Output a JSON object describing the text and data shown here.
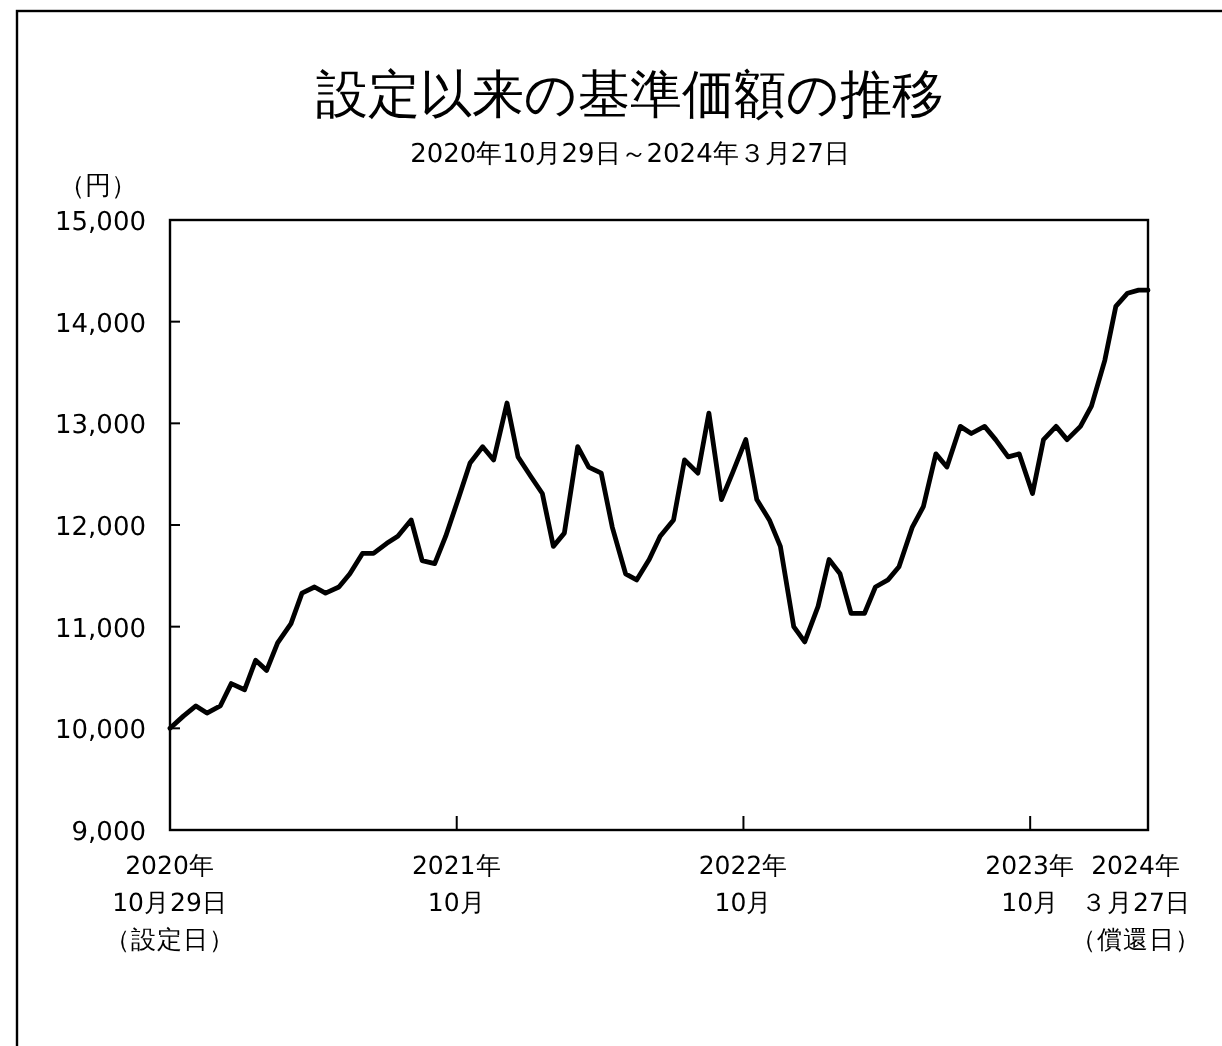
{
  "chart_data": {
    "type": "line",
    "title": "設定以来の基準価額の推移",
    "subtitle": "2020年10月29日～2024年３月27日",
    "ylabel": "（円）",
    "xlim": [
      "2020-10-29",
      "2024-03-27"
    ],
    "ylim": [
      9000,
      15000
    ],
    "xticks": [
      {
        "value": "2020-10-29",
        "label": "2020年10月29日（設定日）"
      },
      {
        "value": "2021-10-29",
        "label": "2021年10月"
      },
      {
        "value": "2022-10-29",
        "label": "2022年10月"
      },
      {
        "value": "2023-10-29",
        "label": "2023年10月"
      },
      {
        "value": "2024-03-27",
        "label": "2024年３月27日（償還日）"
      }
    ],
    "yticks": [
      {
        "value": 9000,
        "label": "9,000"
      },
      {
        "value": 10000,
        "label": "10,000"
      },
      {
        "value": 11000,
        "label": "11,000"
      },
      {
        "value": 12000,
        "label": "12,000"
      },
      {
        "value": 13000,
        "label": "13,000"
      },
      {
        "value": 14000,
        "label": "14,000"
      },
      {
        "value": 15000,
        "label": "15,000"
      }
    ],
    "grid": false,
    "color": "#000000",
    "x": [
      "2020-10-29",
      "2020-11-15",
      "2020-12-01",
      "2020-12-15",
      "2021-01-01",
      "2021-01-15",
      "2021-02-01",
      "2021-02-15",
      "2021-03-01",
      "2021-03-15",
      "2021-04-01",
      "2021-04-15",
      "2021-05-01",
      "2021-05-15",
      "2021-06-01",
      "2021-06-15",
      "2021-07-01",
      "2021-07-15",
      "2021-08-01",
      "2021-08-15",
      "2021-09-01",
      "2021-09-15",
      "2021-10-01",
      "2021-10-15",
      "2021-11-01",
      "2021-11-15",
      "2021-12-01",
      "2021-12-15",
      "2022-01-01",
      "2022-01-15",
      "2022-02-01",
      "2022-02-15",
      "2022-03-01",
      "2022-03-15",
      "2022-04-01",
      "2022-04-15",
      "2022-05-01",
      "2022-05-15",
      "2022-06-01",
      "2022-06-15",
      "2022-07-01",
      "2022-07-15",
      "2022-08-01",
      "2022-08-15",
      "2022-09-01",
      "2022-09-15",
      "2022-10-01",
      "2022-10-15",
      "2022-11-01",
      "2022-11-15",
      "2022-12-01",
      "2022-12-15",
      "2023-01-01",
      "2023-01-15",
      "2023-02-01",
      "2023-02-15",
      "2023-03-01",
      "2023-03-15",
      "2023-04-01",
      "2023-04-15",
      "2023-05-01",
      "2023-05-15",
      "2023-06-01",
      "2023-06-15",
      "2023-07-01",
      "2023-07-15",
      "2023-08-01",
      "2023-08-15",
      "2023-09-01",
      "2023-09-15",
      "2023-10-01",
      "2023-10-15",
      "2023-11-01",
      "2023-11-15",
      "2023-12-01",
      "2023-12-15",
      "2024-01-01",
      "2024-01-15",
      "2024-02-01",
      "2024-02-15",
      "2024-03-01",
      "2024-03-15",
      "2024-03-27"
    ],
    "values": [
      10000,
      10120,
      10220,
      10150,
      10220,
      10440,
      10380,
      10670,
      10570,
      10840,
      11030,
      11330,
      11390,
      11330,
      11390,
      11520,
      11720,
      11720,
      11820,
      11890,
      12050,
      11650,
      11620,
      11890,
      12280,
      12610,
      12770,
      12640,
      13200,
      12670,
      12470,
      12310,
      11790,
      11920,
      12770,
      12570,
      12510,
      11980,
      11520,
      11460,
      11660,
      11890,
      12050,
      12640,
      12510,
      13100,
      12250,
      12510,
      12840,
      12250,
      12050,
      11790,
      11000,
      10850,
      11200,
      11660,
      11520,
      11130,
      11130,
      11390,
      11460,
      11590,
      11980,
      12180,
      12700,
      12570,
      12970,
      12900,
      12970,
      12840,
      12670,
      12700,
      12310,
      12840,
      12970,
      12840,
      12970,
      13170,
      13620,
      14150,
      14280,
      14310,
      14310
    ]
  }
}
